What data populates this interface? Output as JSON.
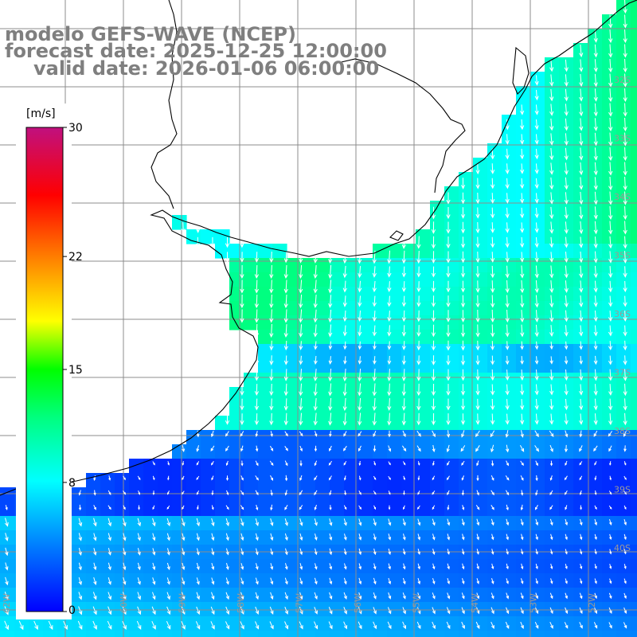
{
  "title": {
    "line1": "modelo GEFS-WAVE (NCEP)",
    "line2": "forecast date: 2025-12-25 12:00:00",
    "line3": "valid date: 2026-01-06 06:00:00"
  },
  "colorbar": {
    "unit": "[m/s]",
    "min": 0,
    "max": 30,
    "tick_labels": [
      "30",
      "22",
      "15",
      "8",
      "0"
    ],
    "tick_values": [
      30,
      22,
      15,
      8,
      0
    ],
    "colors": [
      "#0000ff",
      "#00a0ff",
      "#00ffff",
      "#00ff40",
      "#ffff00",
      "#ff8000",
      "#ff0000",
      "#c0107f"
    ]
  },
  "map": {
    "variable": "wind speed and direction",
    "latitude_labels": [
      "32S",
      "33S",
      "34S",
      "35S",
      "36S",
      "37S",
      "38S",
      "39S",
      "40S"
    ],
    "longitude_labels": [
      "62W",
      "61W",
      "60W",
      "59W",
      "58W",
      "57W",
      "56W",
      "55W",
      "54W",
      "53W",
      "52W"
    ],
    "wind_field_bands": [
      {
        "region": "north (32S-37S)",
        "speed_ms": 10,
        "direction": "from north"
      },
      {
        "region": "central band (37S-38S)",
        "speed_ms": 9,
        "direction": "from north"
      },
      {
        "region": "south (38S-39.5S)",
        "speed_ms": 3,
        "direction": "variable"
      },
      {
        "region": "southern edge (39.5S-41S)",
        "speed_ms": 7,
        "direction": "from north-east"
      }
    ]
  }
}
